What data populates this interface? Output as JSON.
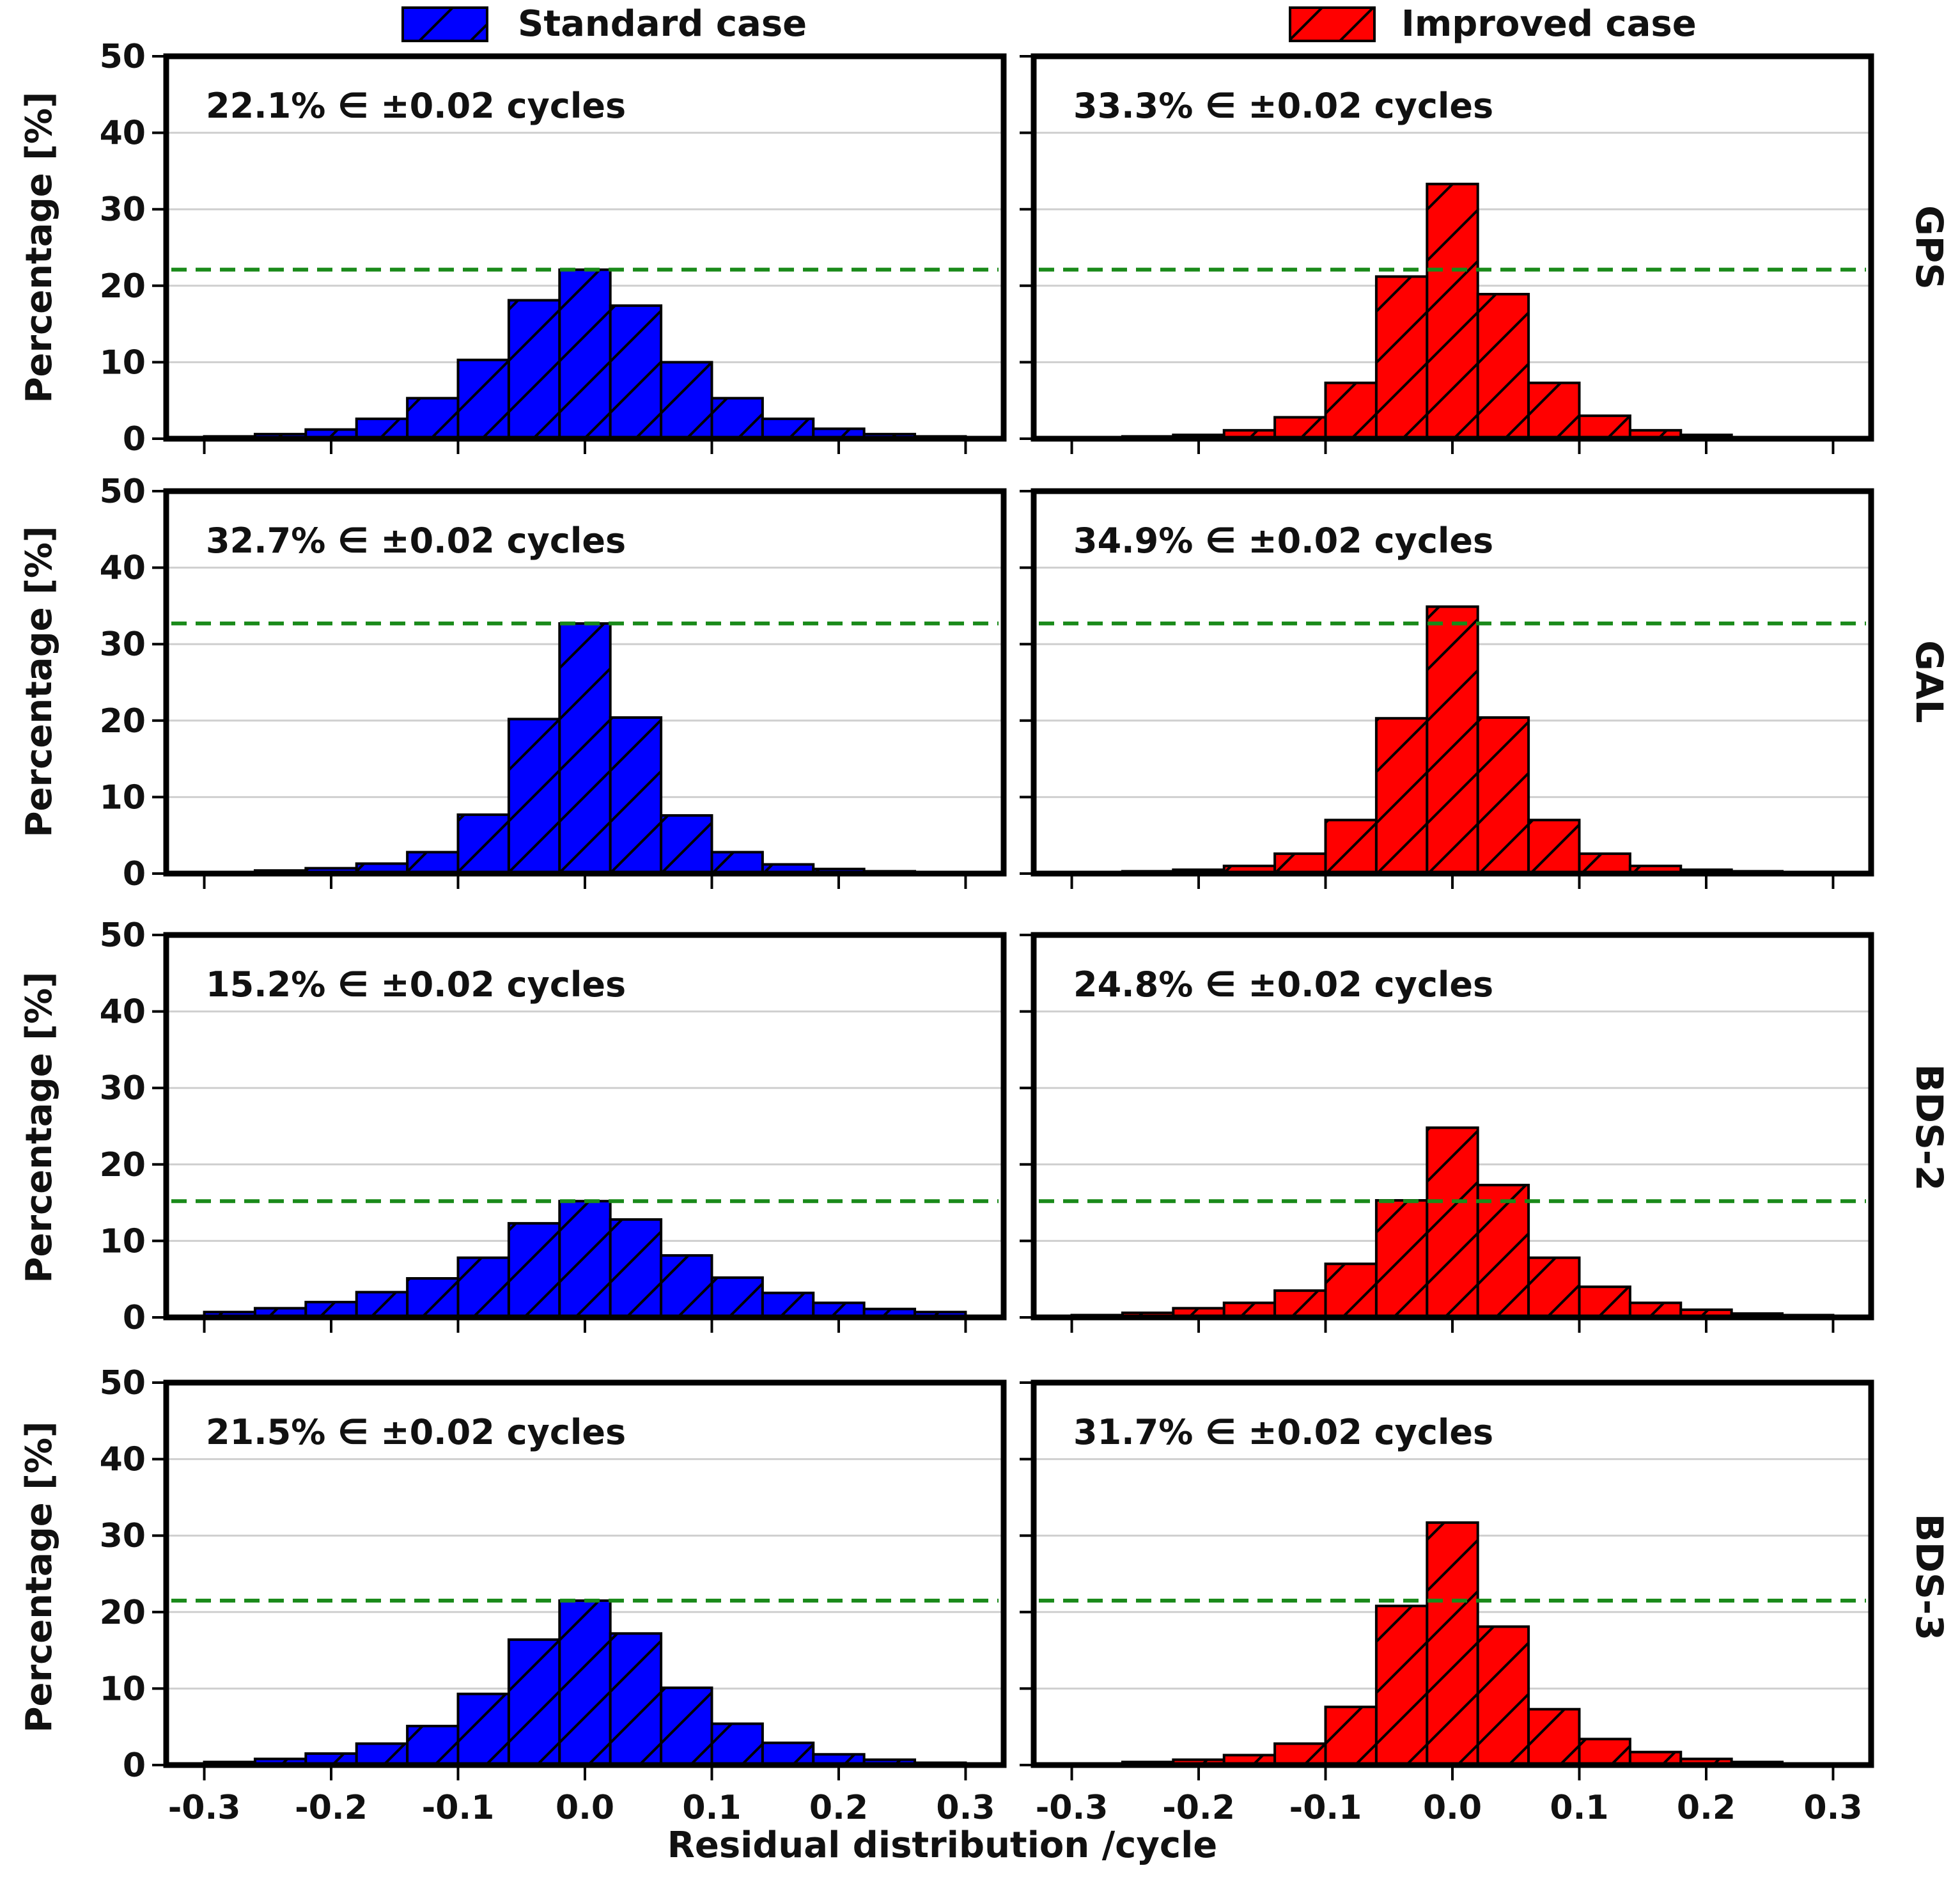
{
  "chart_data": {
    "type": "bar",
    "xlabel": "Residual distribution /cycle",
    "ylabel": "Percentage [%]",
    "ylim": [
      0,
      50
    ],
    "yticks": [
      0,
      10,
      20,
      30,
      40,
      50
    ],
    "xlim": [
      -0.33,
      0.33
    ],
    "xticks": [
      -0.3,
      -0.2,
      -0.1,
      0.0,
      0.1,
      0.2,
      0.3
    ],
    "xtick_labels": [
      "-0.3",
      "-0.2",
      "-0.1",
      "0.0",
      "0.1",
      "0.2",
      "0.3"
    ],
    "bin_centers": [
      -0.32,
      -0.28,
      -0.24,
      -0.2,
      -0.16,
      -0.12,
      -0.08,
      -0.04,
      0.0,
      0.04,
      0.08,
      0.12,
      0.16,
      0.2,
      0.24,
      0.28,
      0.32
    ],
    "bin_width": 0.04,
    "grid": true,
    "legend": [
      {
        "label": "Standard case",
        "color": "#0000ff",
        "hatch": "/"
      },
      {
        "label": "Improved case",
        "color": "#ff0000",
        "hatch": "/"
      }
    ],
    "reference_line_color": "#1a8a1a",
    "rows": [
      {
        "system": "GPS",
        "reference": 22.1,
        "panels": [
          {
            "series": "Standard case",
            "color": "#0000ff",
            "annotation": "22.1% ∈ ±0.02 cycles",
            "values": [
              0,
              0.3,
              0.6,
              1.2,
              2.6,
              5.3,
              10.3,
              18.1,
              22.1,
              17.4,
              10.0,
              5.3,
              2.6,
              1.3,
              0.6,
              0.3,
              0
            ]
          },
          {
            "series": "Improved case",
            "color": "#ff0000",
            "annotation": "33.3% ∈ ±0.02 cycles",
            "values": [
              0,
              0.1,
              0.3,
              0.5,
              1.1,
              2.8,
              7.3,
              21.2,
              33.3,
              18.9,
              7.3,
              3.0,
              1.1,
              0.5,
              0.2,
              0.1,
              0
            ]
          }
        ]
      },
      {
        "system": "GAL",
        "reference": 32.7,
        "panels": [
          {
            "series": "Standard case",
            "color": "#0000ff",
            "annotation": "32.7% ∈ ±0.02 cycles",
            "values": [
              0,
              0.2,
              0.4,
              0.7,
              1.3,
              2.8,
              7.7,
              20.2,
              32.7,
              20.4,
              7.6,
              2.8,
              1.2,
              0.6,
              0.3,
              0.2,
              0
            ]
          },
          {
            "series": "Improved case",
            "color": "#ff0000",
            "annotation": "34.9% ∈ ±0.02 cycles",
            "values": [
              0,
              0.1,
              0.3,
              0.5,
              1.0,
              2.6,
              7.0,
              20.3,
              34.9,
              20.4,
              7.0,
              2.6,
              1.0,
              0.5,
              0.3,
              0.1,
              0
            ]
          }
        ]
      },
      {
        "system": "BDS-2",
        "reference": 15.2,
        "panels": [
          {
            "series": "Standard case",
            "color": "#0000ff",
            "annotation": "15.2% ∈ ±0.02 cycles",
            "values": [
              0,
              0.7,
              1.2,
              2.0,
              3.3,
              5.1,
              7.8,
              12.3,
              15.2,
              12.8,
              8.1,
              5.2,
              3.2,
              1.9,
              1.1,
              0.7,
              0
            ]
          },
          {
            "series": "Improved case",
            "color": "#ff0000",
            "annotation": "24.8% ∈ ±0.02 cycles",
            "values": [
              0,
              0.3,
              0.6,
              1.2,
              1.9,
              3.5,
              7.0,
              15.3,
              24.8,
              17.3,
              7.8,
              4.0,
              1.9,
              1.0,
              0.5,
              0.3,
              0
            ]
          }
        ]
      },
      {
        "system": "BDS-3",
        "reference": 21.5,
        "panels": [
          {
            "series": "Standard case",
            "color": "#0000ff",
            "annotation": "21.5% ∈ ±0.02 cycles",
            "values": [
              0,
              0.4,
              0.8,
              1.5,
              2.8,
              5.1,
              9.3,
              16.4,
              21.5,
              17.2,
              10.1,
              5.4,
              2.9,
              1.4,
              0.7,
              0.3,
              0
            ]
          },
          {
            "series": "Improved case",
            "color": "#ff0000",
            "annotation": "31.7% ∈ ±0.02 cycles",
            "values": [
              0,
              0.2,
              0.4,
              0.7,
              1.3,
              2.8,
              7.6,
              20.8,
              31.7,
              18.1,
              7.3,
              3.4,
              1.7,
              0.8,
              0.4,
              0.2,
              0
            ]
          }
        ]
      }
    ]
  }
}
